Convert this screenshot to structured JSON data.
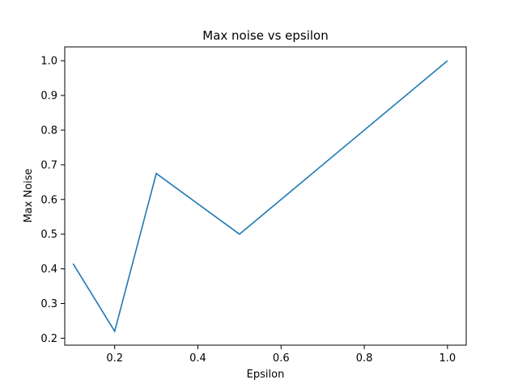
{
  "chart_data": {
    "type": "line",
    "title": "Max noise vs epsilon",
    "xlabel": "Epsilon",
    "ylabel": "Max Noise",
    "xlim": [
      0.08,
      1.045
    ],
    "ylim": [
      0.18,
      1.04
    ],
    "xticks": [
      0.2,
      0.4,
      0.6,
      0.8,
      1.0
    ],
    "xtick_labels": [
      "0.2",
      "0.4",
      "0.6",
      "0.8",
      "1.0"
    ],
    "yticks": [
      0.2,
      0.3,
      0.4,
      0.5,
      0.6,
      0.7,
      0.8,
      0.9,
      1.0
    ],
    "ytick_labels": [
      "0.2",
      "0.3",
      "0.4",
      "0.5",
      "0.6",
      "0.7",
      "0.8",
      "0.9",
      "1.0"
    ],
    "grid": false,
    "series": [
      {
        "color": "#1f77b4",
        "x": [
          0.1,
          0.2,
          0.3,
          0.5,
          1.0
        ],
        "y": [
          0.415,
          0.22,
          0.675,
          0.5,
          1.0
        ]
      }
    ]
  }
}
